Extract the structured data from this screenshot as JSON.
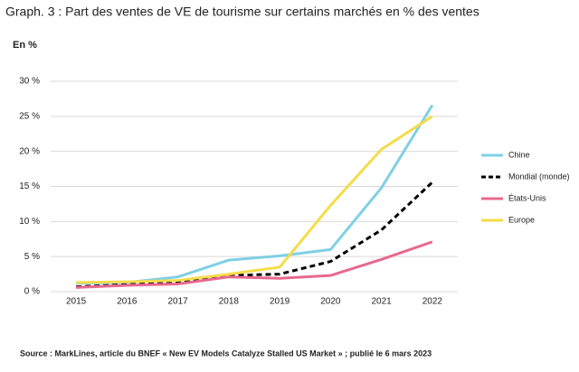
{
  "chart_data": {
    "type": "line",
    "title": "Graph. 3 : Part des ventes de VE de tourisme sur certains marchés en % des ventes",
    "y_label": "En %",
    "source": "Source : MarkLines, article du BNEF « New EV Models Catalyze Stalled US Market » ; publié le 6 mars 2023",
    "categories": [
      "2015",
      "2016",
      "2017",
      "2018",
      "2019",
      "2020",
      "2021",
      "2022"
    ],
    "series": [
      {
        "name": "Chine",
        "color": "#7fd0e5",
        "line_style": "solid",
        "values": [
          1.2,
          1.3,
          2.1,
          4.5,
          5.1,
          6.0,
          14.8,
          26.6
        ]
      },
      {
        "name": "Mondial (monde)",
        "color": "#000000",
        "line_style": "dashed",
        "values": [
          0.7,
          1.0,
          1.3,
          2.3,
          2.5,
          4.3,
          8.8,
          15.6
        ]
      },
      {
        "name": "États-Unis",
        "color": "#e8698f",
        "line_style": "solid",
        "values": [
          0.6,
          0.9,
          1.1,
          2.1,
          1.9,
          2.3,
          4.6,
          7.1
        ]
      },
      {
        "name": "Europe",
        "color": "#f5dc4a",
        "line_style": "solid",
        "values": [
          1.3,
          1.4,
          1.6,
          2.5,
          3.5,
          12.3,
          20.3,
          25.0
        ]
      }
    ],
    "ylim": [
      0,
      30
    ],
    "yticks": [
      {
        "value": 0,
        "label": "0 %"
      },
      {
        "value": 5,
        "label": "5 %"
      },
      {
        "value": 10,
        "label": "10 %"
      },
      {
        "value": 15,
        "label": "15 %"
      },
      {
        "value": 20,
        "label": "20 %"
      },
      {
        "value": 25,
        "label": "25 %"
      },
      {
        "value": 30,
        "label": "30 %"
      }
    ],
    "grid": true,
    "legend": "right"
  }
}
